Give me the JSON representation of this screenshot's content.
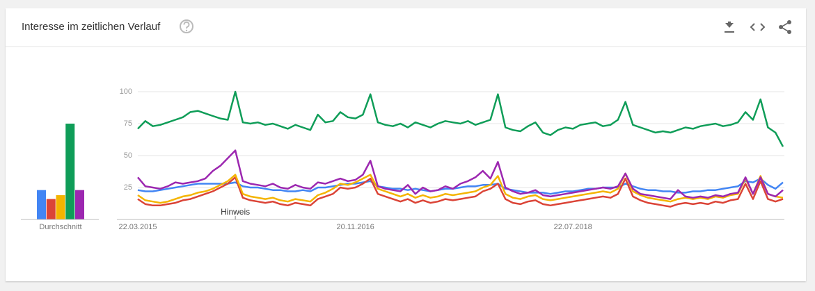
{
  "header": {
    "title": "Interesse im zeitlichen Verlauf"
  },
  "chart_data": [
    {
      "type": "line",
      "categories": [
        "22.03.2015",
        null,
        null,
        null,
        null,
        null,
        null,
        null,
        null,
        null,
        null,
        null,
        null,
        null,
        null,
        null,
        null,
        null,
        null,
        null,
        null,
        null,
        null,
        null,
        null,
        null,
        null,
        null,
        null,
        "20.11.2016",
        null,
        null,
        null,
        null,
        null,
        null,
        null,
        null,
        null,
        null,
        null,
        null,
        null,
        null,
        null,
        null,
        null,
        null,
        null,
        null,
        null,
        null,
        null,
        null,
        null,
        null,
        null,
        null,
        "22.07.2018",
        null,
        null,
        null,
        null,
        null,
        null,
        null,
        null,
        null,
        null,
        null,
        null,
        null,
        null,
        null,
        null,
        null,
        null,
        null,
        null,
        null,
        null,
        null,
        null,
        null,
        null,
        null,
        null
      ],
      "series": [
        {
          "color": "#4285f4",
          "values": [
            23,
            22,
            22,
            23,
            24,
            25,
            26,
            27,
            28,
            28,
            28,
            28,
            28,
            29,
            26,
            25,
            25,
            24,
            23,
            23,
            22,
            22,
            23,
            22,
            25,
            25,
            26,
            27,
            28,
            28,
            29,
            30,
            26,
            25,
            24,
            24,
            23,
            24,
            23,
            22,
            23,
            24,
            24,
            25,
            26,
            26,
            27,
            27,
            28,
            24,
            23,
            22,
            21,
            21,
            21,
            20,
            21,
            22,
            22,
            23,
            24,
            24,
            25,
            25,
            25,
            28,
            26,
            24,
            23,
            23,
            22,
            22,
            21,
            21,
            22,
            22,
            23,
            23,
            24,
            25,
            26,
            30,
            29,
            32,
            27,
            24,
            29
          ]
        },
        {
          "color": "#db4437",
          "values": [
            16,
            12,
            11,
            11,
            12,
            13,
            15,
            16,
            18,
            20,
            22,
            25,
            28,
            33,
            17,
            15,
            14,
            13,
            14,
            12,
            11,
            13,
            12,
            11,
            16,
            18,
            20,
            25,
            24,
            25,
            28,
            32,
            20,
            18,
            16,
            14,
            16,
            13,
            15,
            13,
            14,
            16,
            15,
            16,
            17,
            18,
            22,
            24,
            28,
            16,
            13,
            12,
            14,
            15,
            12,
            11,
            12,
            13,
            14,
            15,
            16,
            17,
            18,
            17,
            20,
            32,
            18,
            15,
            13,
            12,
            11,
            10,
            12,
            13,
            12,
            13,
            12,
            14,
            13,
            15,
            16,
            28,
            16,
            30,
            16,
            14,
            16
          ]
        },
        {
          "color": "#f4b400",
          "values": [
            19,
            15,
            14,
            13,
            14,
            16,
            18,
            19,
            21,
            22,
            24,
            27,
            30,
            35,
            20,
            18,
            17,
            16,
            17,
            15,
            14,
            16,
            15,
            14,
            19,
            21,
            24,
            28,
            27,
            29,
            32,
            35,
            24,
            22,
            20,
            18,
            20,
            17,
            19,
            17,
            18,
            20,
            19,
            20,
            21,
            22,
            25,
            27,
            34,
            20,
            17,
            16,
            18,
            19,
            16,
            15,
            16,
            17,
            18,
            19,
            20,
            21,
            22,
            21,
            24,
            36,
            22,
            19,
            17,
            16,
            15,
            14,
            16,
            17,
            16,
            17,
            16,
            18,
            17,
            19,
            20,
            32,
            20,
            34,
            20,
            18,
            17
          ]
        },
        {
          "color": "#0f9d58",
          "values": [
            71,
            77,
            73,
            74,
            76,
            78,
            80,
            84,
            85,
            83,
            81,
            79,
            78,
            100,
            76,
            75,
            76,
            74,
            75,
            73,
            71,
            74,
            72,
            70,
            82,
            76,
            77,
            84,
            80,
            79,
            82,
            98,
            76,
            74,
            73,
            75,
            72,
            76,
            74,
            72,
            75,
            77,
            76,
            75,
            77,
            74,
            76,
            78,
            98,
            72,
            70,
            69,
            73,
            76,
            68,
            66,
            70,
            72,
            71,
            74,
            75,
            76,
            73,
            74,
            78,
            92,
            74,
            72,
            70,
            68,
            69,
            68,
            70,
            72,
            71,
            73,
            74,
            75,
            73,
            74,
            76,
            84,
            78,
            94,
            72,
            68,
            57
          ]
        },
        {
          "color": "#9c27b0",
          "values": [
            33,
            26,
            25,
            24,
            26,
            29,
            28,
            29,
            30,
            32,
            38,
            42,
            48,
            54,
            30,
            28,
            27,
            26,
            28,
            25,
            24,
            27,
            25,
            24,
            29,
            28,
            30,
            32,
            30,
            31,
            35,
            46,
            26,
            24,
            23,
            22,
            27,
            20,
            25,
            22,
            23,
            26,
            24,
            28,
            30,
            33,
            38,
            32,
            45,
            25,
            22,
            20,
            21,
            23,
            19,
            18,
            19,
            20,
            21,
            22,
            23,
            24,
            25,
            24,
            26,
            36,
            24,
            20,
            19,
            18,
            17,
            16,
            23,
            18,
            17,
            18,
            17,
            19,
            18,
            20,
            21,
            33,
            20,
            33,
            20,
            18,
            23
          ]
        }
      ],
      "ylim": [
        0,
        100
      ],
      "yticks": [
        25,
        50,
        75,
        100
      ],
      "grid": true,
      "annotations": [
        {
          "label": "Hinweis",
          "index": 13
        }
      ]
    },
    {
      "type": "bar",
      "label": "Durchschnitt",
      "values": [
        23,
        16,
        19,
        75,
        23
      ],
      "colors": [
        "#4285f4",
        "#db4437",
        "#f4b400",
        "#0f9d58",
        "#9c27b0"
      ],
      "ylim": [
        0,
        100
      ]
    }
  ]
}
